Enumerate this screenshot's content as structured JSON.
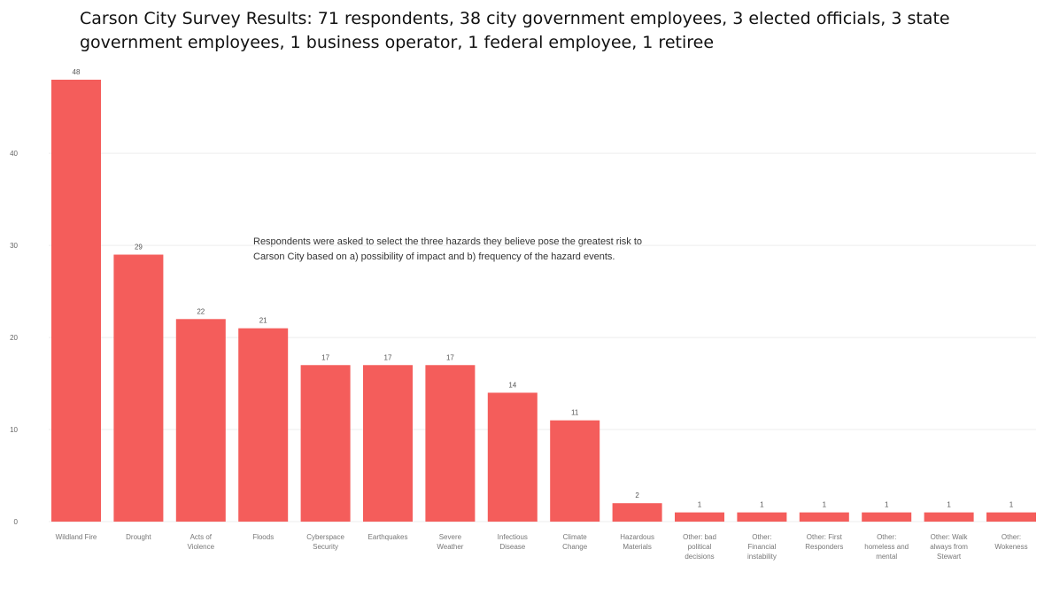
{
  "chart_data": {
    "type": "bar",
    "title": "Carson City Survey Results: 71 respondents, 38 city government employees, 3 elected officials, 3 state government employees, 1 business operator, 1 federal employee, 1 retiree",
    "annotation": "Respondents were asked to select the three hazards they believe pose the greatest risk to Carson City based on a) possibility of impact and b) frequency of the hazard events.",
    "categories": [
      [
        "Wildland Fire"
      ],
      [
        "Drought"
      ],
      [
        "Acts of",
        "Violence"
      ],
      [
        "Floods"
      ],
      [
        "Cyberspace",
        "Security"
      ],
      [
        "Earthquakes"
      ],
      [
        "Severe",
        "Weather"
      ],
      [
        "Infectious",
        "Disease"
      ],
      [
        "Climate",
        "Change"
      ],
      [
        "Hazardous",
        "Materials"
      ],
      [
        "Other: bad",
        "political",
        "decisions"
      ],
      [
        "Other:",
        "Financial",
        "instability"
      ],
      [
        "Other: First",
        "Responders"
      ],
      [
        "Other:",
        "homeless and",
        "mental"
      ],
      [
        "Other: Walk",
        "always from",
        "Stewart"
      ],
      [
        "Other:",
        "Wokeness"
      ]
    ],
    "values": [
      48,
      29,
      22,
      21,
      17,
      17,
      17,
      14,
      11,
      2,
      1,
      1,
      1,
      1,
      1,
      1
    ],
    "data_labels": [
      "48",
      "29",
      "22",
      "21",
      "17",
      "17",
      "17",
      "14",
      "11",
      "2",
      "1",
      "1",
      "1",
      "1",
      "1",
      "1"
    ],
    "yticks": [
      0,
      10,
      20,
      30,
      40
    ],
    "ylim": [
      0,
      48
    ],
    "grid": true,
    "bar_color": "#f45d5b",
    "grid_color": "#eeeeee"
  }
}
